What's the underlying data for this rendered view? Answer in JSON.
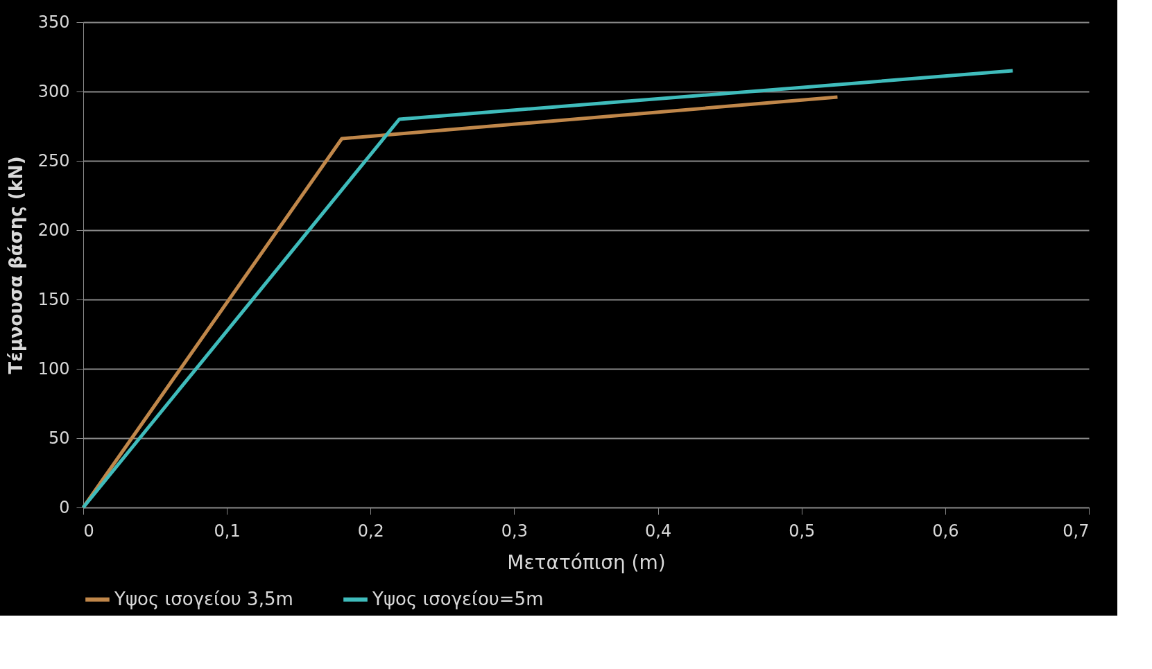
{
  "chart_data": {
    "type": "line",
    "xlabel": "Μετατόπιση (m)",
    "ylabel": "Τέμνουσα βάσης (kN)",
    "xlim": [
      0,
      0.7
    ],
    "xticks": [
      0,
      {
        "value": 0.1,
        "label": "0,1"
      },
      {
        "value": 0.2,
        "label": "0,2"
      },
      {
        "value": 0.3,
        "label": "0,3"
      },
      {
        "value": 0.4,
        "label": "0,4"
      },
      {
        "value": 0.5,
        "label": "0,5"
      },
      {
        "value": 0.6,
        "label": "0,6"
      },
      {
        "value": 0.7,
        "label": "0,7"
      }
    ],
    "ylim": [
      0,
      350
    ],
    "yticks": [
      0,
      50,
      100,
      150,
      200,
      250,
      300,
      350
    ],
    "grid": "y",
    "legend": "bottom",
    "marker": "none",
    "line_style": "solid",
    "series": [
      {
        "name": "Υψος ισογείου 3,5m",
        "color": "#c0874a",
        "x": [
          0,
          0.18,
          0.525
        ],
        "values": [
          0,
          266,
          296
        ]
      },
      {
        "name": "Υψος ισογείου=5m",
        "color": "#3fbcbc",
        "x": [
          0,
          0.22,
          0.647
        ],
        "values": [
          0,
          280,
          315
        ]
      }
    ]
  }
}
